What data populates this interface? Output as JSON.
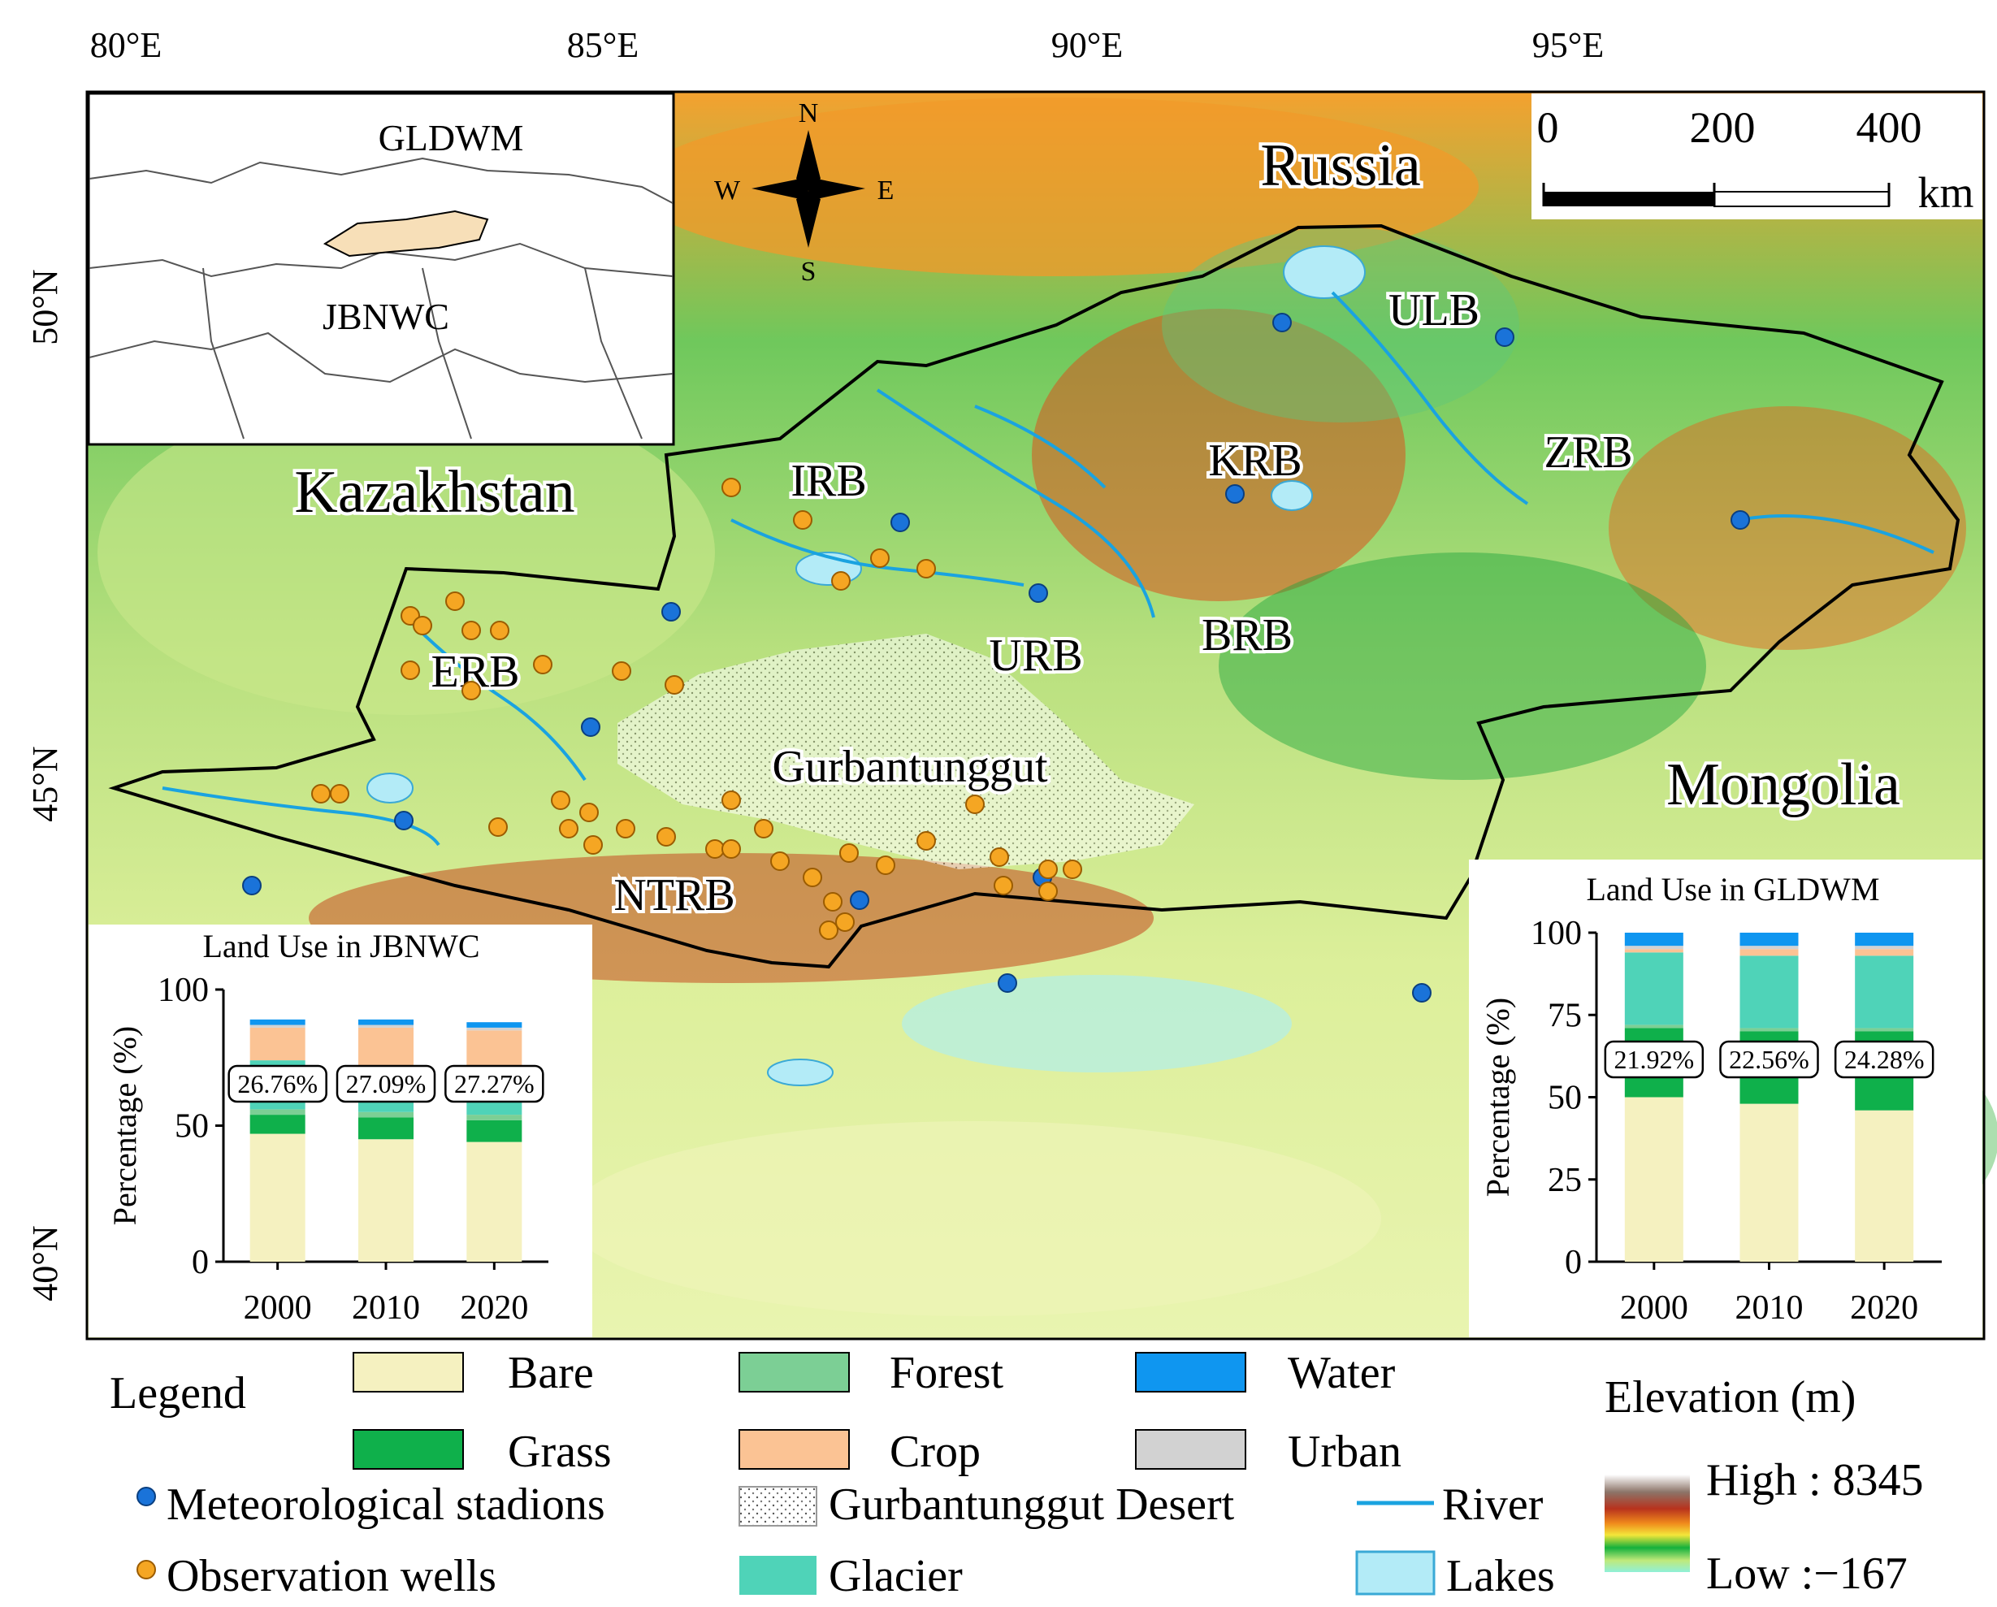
{
  "axes": {
    "lon_labels": [
      "80°E",
      "85°E",
      "90°E",
      "95°E"
    ],
    "lat_labels": [
      "50°N",
      "45°N",
      "40°N"
    ]
  },
  "compass": {
    "n": "N",
    "s": "S",
    "w": "W",
    "e": "E"
  },
  "scalebar": {
    "ticks": [
      "0",
      "200",
      "400"
    ],
    "unit": "km"
  },
  "inset": {
    "gldwm": "GLDWM",
    "jbnwc": "JBNWC"
  },
  "countries": {
    "russia": "Russia",
    "kazakhstan": "Kazakhstan",
    "mongolia": "Mongolia"
  },
  "basins": {
    "ulb": "ULB",
    "zrb": "ZRB",
    "krb": "KRB",
    "irb": "IRB",
    "urb": "URB",
    "brb": "BRB",
    "erb": "ERB",
    "ntrb": "NTRB",
    "desert": "Gurbantunggut"
  },
  "charts": [
    {
      "title": "Land Use in JBNWC",
      "ylabel": "Percentage (%)",
      "yticks": [
        "100",
        "50",
        "0"
      ],
      "categories": [
        "2000",
        "2010",
        "2020"
      ],
      "labels": [
        "26.76%",
        "27.09%",
        "27.27%"
      ]
    },
    {
      "title": "Land Use in GLDWM",
      "ylabel": "Percentage (%)",
      "yticks": [
        "100",
        "75",
        "50",
        "25",
        "0"
      ],
      "categories": [
        "2000",
        "2010",
        "2020"
      ],
      "labels": [
        "21.92%",
        "22.56%",
        "24.28%"
      ]
    }
  ],
  "chart_data": [
    {
      "type": "bar",
      "stacked": true,
      "title": "Land Use in JBNWC",
      "ylabel": "Percentage (%)",
      "ylim": [
        0,
        100
      ],
      "categories": [
        "2000",
        "2010",
        "2020"
      ],
      "series": [
        {
          "name": "Bare",
          "values": [
            47,
            45,
            44
          ]
        },
        {
          "name": "Grass",
          "values": [
            7,
            8,
            8
          ]
        },
        {
          "name": "Forest",
          "values": [
            2,
            2,
            2
          ]
        },
        {
          "name": "Glacier",
          "values": [
            18,
            17,
            16
          ]
        },
        {
          "name": "Crop",
          "values": [
            12,
            14,
            15
          ]
        },
        {
          "name": "Urban",
          "values": [
            1,
            1,
            1
          ]
        },
        {
          "name": "Water",
          "values": [
            2,
            2,
            2
          ]
        }
      ]
    },
    {
      "type": "bar",
      "stacked": true,
      "title": "Land Use in GLDWM",
      "ylabel": "Percentage (%)",
      "ylim": [
        0,
        100
      ],
      "categories": [
        "2000",
        "2010",
        "2020"
      ],
      "series": [
        {
          "name": "Bare",
          "values": [
            50,
            48,
            46
          ]
        },
        {
          "name": "Grass",
          "values": [
            21,
            22,
            24
          ]
        },
        {
          "name": "Forest",
          "values": [
            1,
            1,
            1
          ]
        },
        {
          "name": "Glacier",
          "values": [
            22,
            22,
            22
          ]
        },
        {
          "name": "Crop",
          "values": [
            1,
            2,
            2
          ]
        },
        {
          "name": "Urban",
          "values": [
            1,
            1,
            1
          ]
        },
        {
          "name": "Water",
          "values": [
            4,
            4,
            4
          ]
        }
      ]
    }
  ],
  "legend": {
    "title": "Legend",
    "items": [
      {
        "label": "Bare",
        "color": "#f5f1c0"
      },
      {
        "label": "Forest",
        "color": "#7ccf95"
      },
      {
        "label": "Water",
        "color": "#0f96f0"
      },
      {
        "label": "Grass",
        "color": "#0fb04b"
      },
      {
        "label": "Crop",
        "color": "#fbc394"
      },
      {
        "label": "Urban",
        "color": "#d2d2d2"
      }
    ],
    "symbols": [
      {
        "label": "Meteorological stadions",
        "color": "#1a73d9"
      },
      {
        "label": "Observation wells",
        "color": "#f5a623"
      },
      {
        "label": "Gurbantunggut Desert"
      },
      {
        "label": "Glacier",
        "color": "#4fd3b8"
      },
      {
        "label": "River",
        "color": "#1aa3e0"
      },
      {
        "label": "Lakes",
        "color": "#b3ebf7"
      }
    ],
    "elevation": {
      "title": "Elevation (m)",
      "high": "High : 8345",
      "low": "Low :−167"
    }
  }
}
